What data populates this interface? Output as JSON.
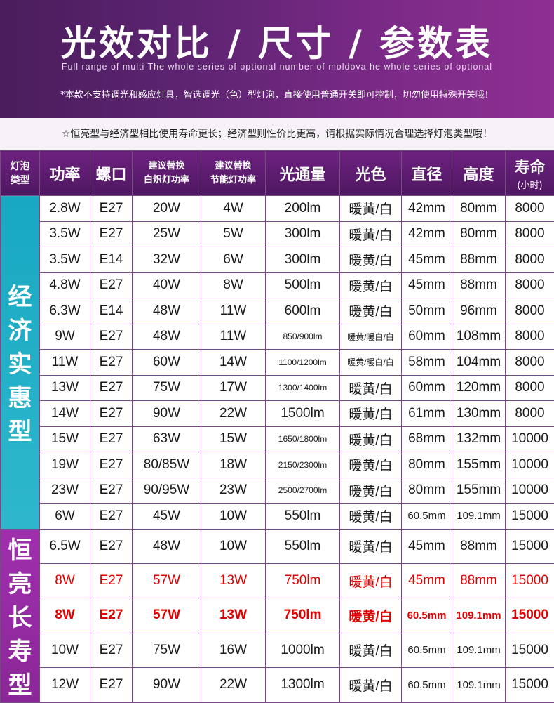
{
  "banner": {
    "title": "光效对比 / 尺寸 / 参数表",
    "subtitle": "Full range of multi The whole series of optional number of moldova he whole series of optional",
    "notice": "*本款不支持调光和感应灯具，智选调光（色）型灯泡，直接使用普通开关即可控制，切勿使用特殊开关哦！"
  },
  "tip": "☆恒亮型与经济型相比使用寿命更长；经济型则性价比更高，请根据实际情况合理选择灯泡类型哦！",
  "table": {
    "headers": {
      "type_line1": "灯泡",
      "type_line2": "类型",
      "power": "功率",
      "base": "螺口",
      "incand_line1": "建议替换",
      "incand_line2": "白炽灯功率",
      "cfl_line1": "建议替换",
      "cfl_line2": "节能灯功率",
      "lumen": "光通量",
      "color": "光色",
      "diameter": "直径",
      "height": "高度",
      "life": "寿命",
      "life_unit": "(小时)"
    },
    "categories": {
      "economy": [
        "经",
        "济",
        "实",
        "惠",
        "型"
      ],
      "long_life": [
        "恒",
        "亮",
        "长",
        "寿",
        "型"
      ]
    },
    "rows": [
      {
        "power": "2.8W",
        "base": "E27",
        "incand": "20W",
        "cfl": "4W",
        "lumen": "200lm",
        "color": "暖黄/白",
        "diameter": "42mm",
        "height": "80mm",
        "life": "8000"
      },
      {
        "power": "3.5W",
        "base": "E27",
        "incand": "25W",
        "cfl": "5W",
        "lumen": "300lm",
        "color": "暖黄/白",
        "diameter": "42mm",
        "height": "80mm",
        "life": "8000"
      },
      {
        "power": "3.5W",
        "base": "E14",
        "incand": "32W",
        "cfl": "6W",
        "lumen": "300lm",
        "color": "暖黄/白",
        "diameter": "45mm",
        "height": "88mm",
        "life": "8000"
      },
      {
        "power": "4.8W",
        "base": "E27",
        "incand": "40W",
        "cfl": "8W",
        "lumen": "500lm",
        "color": "暖黄/白",
        "diameter": "45mm",
        "height": "88mm",
        "life": "8000"
      },
      {
        "power": "6.3W",
        "base": "E14",
        "incand": "48W",
        "cfl": "11W",
        "lumen": "600lm",
        "color": "暖黄/白",
        "diameter": "50mm",
        "height": "96mm",
        "life": "8000"
      },
      {
        "power": "9W",
        "base": "E27",
        "incand": "48W",
        "cfl": "11W",
        "lumen": "850/900lm",
        "color": "暖黄/暖白/白",
        "diameter": "60mm",
        "height": "108mm",
        "life": "8000"
      },
      {
        "power": "11W",
        "base": "E27",
        "incand": "60W",
        "cfl": "14W",
        "lumen": "1100/1200lm",
        "color": "暖黄/暖白/白",
        "diameter": "58mm",
        "height": "104mm",
        "life": "8000"
      },
      {
        "power": "13W",
        "base": "E27",
        "incand": "75W",
        "cfl": "17W",
        "lumen": "1300/1400lm",
        "color": "暖黄/白",
        "diameter": "60mm",
        "height": "120mm",
        "life": "8000"
      },
      {
        "power": "14W",
        "base": "E27",
        "incand": "90W",
        "cfl": "22W",
        "lumen": "1500lm",
        "color": "暖黄/白",
        "diameter": "61mm",
        "height": "130mm",
        "life": "8000"
      },
      {
        "power": "15W",
        "base": "E27",
        "incand": "63W",
        "cfl": "15W",
        "lumen": "1650/1800lm",
        "color": "暖黄/白",
        "diameter": "68mm",
        "height": "132mm",
        "life": "10000"
      },
      {
        "power": "19W",
        "base": "E27",
        "incand": "80/85W",
        "cfl": "18W",
        "lumen": "2150/2300lm",
        "color": "暖黄/白",
        "diameter": "80mm",
        "height": "155mm",
        "life": "10000"
      },
      {
        "power": "23W",
        "base": "E27",
        "incand": "90/95W",
        "cfl": "23W",
        "lumen": "2500/2700lm",
        "color": "暖黄/白",
        "diameter": "80mm",
        "height": "155mm",
        "life": "10000"
      },
      {
        "power": "6W",
        "base": "E27",
        "incand": "45W",
        "cfl": "10W",
        "lumen": "550lm",
        "color": "暖黄/白",
        "diameter": "60.5mm",
        "height": "109.1mm",
        "life": "15000"
      },
      {
        "power": "6.5W",
        "base": "E27",
        "incand": "48W",
        "cfl": "10W",
        "lumen": "550lm",
        "color": "暖黄/白",
        "diameter": "45mm",
        "height": "88mm",
        "life": "15000"
      },
      {
        "power": "8W",
        "base": "E27",
        "incand": "57W",
        "cfl": "13W",
        "lumen": "750lm",
        "color": "暖黄/白",
        "diameter": "45mm",
        "height": "88mm",
        "life": "15000"
      },
      {
        "power": "8W",
        "base": "E27",
        "incand": "57W",
        "cfl": "13W",
        "lumen": "750lm",
        "color": "暖黄/白",
        "diameter": "60.5mm",
        "height": "109.1mm",
        "life": "15000"
      },
      {
        "power": "10W",
        "base": "E27",
        "incand": "75W",
        "cfl": "16W",
        "lumen": "1000lm",
        "color": "暖黄/白",
        "diameter": "60.5mm",
        "height": "109.1mm",
        "life": "15000"
      },
      {
        "power": "12W",
        "base": "E27",
        "incand": "90W",
        "cfl": "22W",
        "lumen": "1300lm",
        "color": "暖黄/白",
        "diameter": "60.5mm",
        "height": "109.1mm",
        "life": "15000"
      }
    ]
  },
  "colors": {
    "banner": "#5e2472",
    "economy": "#22b0c6",
    "long_life": "#9a2ca8",
    "highlight": "#e10000"
  }
}
